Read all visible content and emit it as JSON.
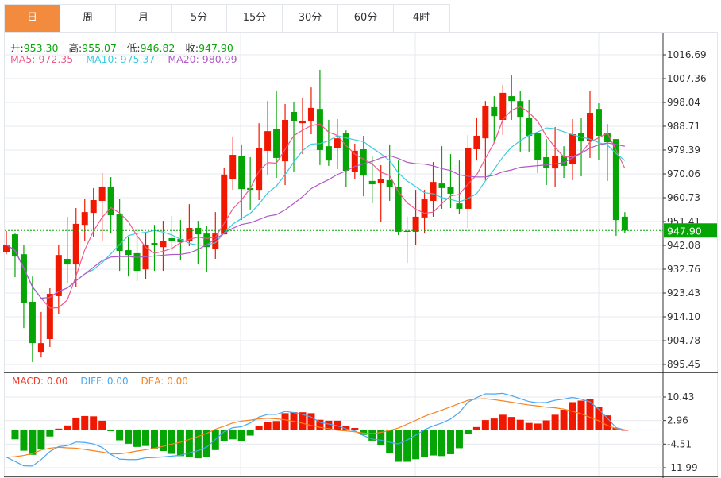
{
  "tabs": [
    {
      "label": "日",
      "active": true
    },
    {
      "label": "周"
    },
    {
      "label": "月"
    },
    {
      "label": "5分"
    },
    {
      "label": "15分"
    },
    {
      "label": "30分"
    },
    {
      "label": "60分"
    },
    {
      "label": "4时"
    }
  ],
  "ohlc": {
    "open_label": "开:",
    "open": "953.30",
    "high_label": "高:",
    "high": "955.07",
    "low_label": "低:",
    "low": "946.82",
    "close_label": "收:",
    "close": "947.90"
  },
  "ma": {
    "ma5_label": "MA5: 972.35",
    "ma10_label": "MA10: 975.37",
    "ma20_label": "MA20: 980.99"
  },
  "macd_info": {
    "macd": "MACD: 0.00",
    "diff": "DIFF: 0.00",
    "dea": "DEA: 0.00"
  },
  "colors": {
    "up": "#f01800",
    "down": "#04a504",
    "ma5": "#ee5a8a",
    "ma10": "#3ccbe0",
    "ma20": "#b25ac8",
    "diff": "#4aa6f2",
    "dea": "#f7821f",
    "tab_active": "#f38b3e"
  },
  "last_price": "947.90",
  "chart_data": [
    {
      "type": "candlestick",
      "name": "price",
      "y_ticks": [
        "1016.69",
        "1007.36",
        "998.04",
        "988.71",
        "979.39",
        "970.06",
        "960.73",
        "951.41",
        "942.08",
        "932.76",
        "923.43",
        "914.10",
        "904.78",
        "895.45"
      ],
      "ylim": [
        895.45,
        1016.69
      ],
      "ohlc": [
        [
          939.6,
          947.7,
          938.6,
          942.4
        ],
        [
          946.4,
          946.7,
          929.6,
          937.7
        ],
        [
          938.6,
          942.4,
          909.7,
          919.4
        ],
        [
          920.0,
          929.9,
          896.4,
          903.8
        ],
        [
          900.4,
          916.0,
          898.2,
          903.8
        ],
        [
          905.4,
          925.3,
          902.3,
          923.1
        ],
        [
          922.2,
          942.4,
          915.3,
          938.3
        ],
        [
          936.8,
          953.3,
          927.1,
          934.6
        ],
        [
          934.6,
          956.7,
          925.9,
          950.5
        ],
        [
          950.1,
          960.4,
          943.9,
          955.1
        ],
        [
          954.8,
          964.5,
          945.5,
          959.8
        ],
        [
          959.5,
          970.4,
          943.9,
          965.1
        ],
        [
          965.1,
          968.8,
          946.7,
          953.9
        ],
        [
          954.2,
          960.4,
          932.1,
          939.9
        ],
        [
          940.2,
          945.5,
          929.9,
          938.3
        ],
        [
          939.0,
          948.6,
          928.1,
          932.1
        ],
        [
          932.7,
          947.4,
          928.7,
          942.4
        ],
        [
          943.0,
          950.1,
          932.1,
          942.1
        ],
        [
          941.4,
          951.7,
          932.1,
          943.9
        ],
        [
          944.9,
          953.6,
          939.9,
          943.9
        ],
        [
          944.6,
          952.0,
          936.5,
          943.3
        ],
        [
          943.6,
          958.2,
          941.8,
          948.9
        ],
        [
          948.9,
          951.7,
          934.6,
          946.4
        ],
        [
          946.7,
          949.8,
          931.5,
          941.4
        ],
        [
          940.8,
          955.1,
          936.8,
          946.7
        ],
        [
          946.4,
          972.5,
          946.4,
          969.8
        ],
        [
          967.9,
          984.7,
          963.8,
          977.5
        ],
        [
          977.2,
          981.6,
          952.0,
          964.1
        ],
        [
          964.5,
          976.6,
          956.1,
          963.8
        ],
        [
          963.8,
          989.9,
          959.8,
          980.3
        ],
        [
          979.1,
          998.6,
          969.8,
          986.8
        ],
        [
          987.5,
          1002.4,
          968.5,
          976.3
        ],
        [
          975.0,
          997.4,
          965.7,
          991.2
        ],
        [
          994.3,
          998.3,
          971.0,
          990.6
        ],
        [
          989.9,
          999.9,
          977.8,
          990.9
        ],
        [
          990.9,
          1003.9,
          985.6,
          995.9
        ],
        [
          995.5,
          1010.8,
          973.5,
          979.4
        ],
        [
          980.9,
          991.2,
          973.2,
          975.3
        ],
        [
          980.0,
          991.5,
          971.9,
          984.0
        ],
        [
          985.9,
          987.1,
          964.8,
          971.3
        ],
        [
          970.7,
          981.9,
          967.9,
          979.1
        ],
        [
          979.7,
          985.0,
          961.3,
          969.4
        ],
        [
          967.3,
          976.9,
          958.5,
          966.0
        ],
        [
          966.6,
          973.5,
          951.1,
          967.9
        ],
        [
          967.6,
          981.6,
          959.5,
          964.8
        ],
        [
          964.8,
          975.3,
          946.1,
          947.4
        ],
        [
          947.4,
          953.3,
          935.2,
          947.7
        ],
        [
          947.4,
          963.8,
          942.1,
          953.3
        ],
        [
          953.0,
          963.8,
          947.0,
          960.1
        ],
        [
          959.5,
          974.7,
          953.3,
          966.9
        ],
        [
          966.3,
          980.9,
          956.4,
          964.5
        ],
        [
          964.8,
          977.8,
          956.7,
          962.3
        ],
        [
          958.5,
          975.3,
          954.2,
          956.4
        ],
        [
          956.4,
          985.3,
          948.9,
          980.3
        ],
        [
          979.7,
          992.1,
          975.3,
          985.0
        ],
        [
          984.0,
          998.6,
          967.6,
          996.8
        ],
        [
          996.2,
          1000.5,
          982.2,
          992.7
        ],
        [
          991.2,
          1004.9,
          985.3,
          1001.8
        ],
        [
          1000.5,
          1008.6,
          991.2,
          998.6
        ],
        [
          998.6,
          1002.4,
          978.8,
          992.4
        ],
        [
          992.1,
          999.0,
          978.8,
          985.0
        ],
        [
          985.9,
          986.5,
          970.4,
          975.6
        ],
        [
          976.6,
          983.7,
          965.7,
          972.5
        ],
        [
          972.2,
          988.4,
          965.1,
          976.9
        ],
        [
          976.9,
          980.9,
          968.5,
          973.2
        ],
        [
          973.8,
          991.5,
          967.6,
          985.6
        ],
        [
          986.2,
          991.8,
          969.1,
          983.1
        ],
        [
          983.1,
          1002.4,
          976.3,
          994.0
        ],
        [
          995.5,
          997.7,
          975.6,
          985.0
        ],
        [
          985.9,
          989.6,
          967.3,
          982.5
        ],
        [
          983.7,
          983.7,
          945.8,
          952.0
        ],
        [
          953.3,
          955.07,
          946.82,
          947.9
        ]
      ]
    },
    {
      "type": "bar+line",
      "name": "macd",
      "y_ticks": [
        "10.43",
        "2.96",
        "-4.51",
        "-11.99"
      ],
      "ylim": [
        -11.99,
        10.43
      ],
      "macd": [
        0.1,
        -3.0,
        -6.6,
        -7.9,
        -6.0,
        -2.1,
        0.4,
        1.4,
        3.9,
        4.4,
        4.3,
        2.9,
        -0.4,
        -3.3,
        -4.4,
        -5.4,
        -5.1,
        -5.9,
        -6.7,
        -7.6,
        -8.3,
        -8.5,
        -9.0,
        -8.7,
        -6.4,
        -3.5,
        -3.0,
        -3.6,
        -1.8,
        1.2,
        2.4,
        2.8,
        5.3,
        5.6,
        5.6,
        5.3,
        3.2,
        2.9,
        2.9,
        1.2,
        0.6,
        -1.6,
        -3.4,
        -4.9,
        -7.4,
        -10.1,
        -10.1,
        -9.3,
        -8.5,
        -8.1,
        -8.3,
        -7.7,
        -5.8,
        -1.2,
        0.9,
        3.1,
        3.6,
        4.8,
        4.1,
        3.2,
        2.2,
        2.0,
        3.0,
        4.8,
        6.4,
        8.8,
        9.3,
        9.8,
        7.3,
        4.6,
        0.6,
        0.0
      ],
      "dea": [
        -8.7,
        -8.5,
        -8.1,
        -7.5,
        -6.4,
        -5.8,
        -5.5,
        -5.7,
        -5.8,
        -6.2,
        -6.6,
        -7.0,
        -7.6,
        -7.6,
        -7.2,
        -6.7,
        -6.3,
        -5.8,
        -5.2,
        -4.5,
        -3.9,
        -3.0,
        -2.1,
        -1.1,
        0.2,
        1.2,
        2.2,
        2.8,
        3.1,
        3.5,
        3.7,
        3.5,
        3.2,
        2.7,
        2.1,
        1.4,
        0.8,
        0.4,
        -0.1,
        -0.3,
        -0.6,
        -1.0,
        -1.2,
        -0.8,
        -0.2,
        0.6,
        1.8,
        3.0,
        4.3,
        5.3,
        6.3,
        7.3,
        8.4,
        9.4,
        9.8,
        9.9,
        9.6,
        9.2,
        8.8,
        8.3,
        7.9,
        7.6,
        7.2,
        7.0,
        6.6,
        5.9,
        5.1,
        4.0,
        2.9,
        1.4,
        0.4,
        0.0
      ]
    }
  ]
}
